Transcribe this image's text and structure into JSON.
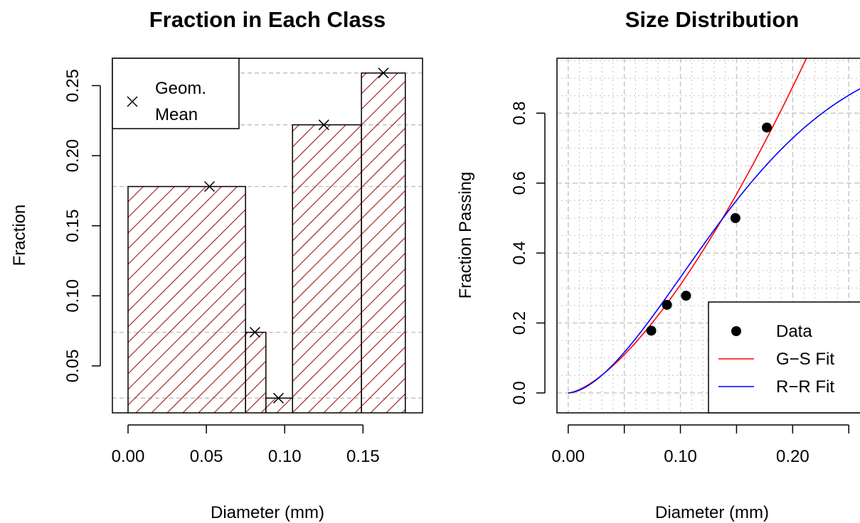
{
  "chart_data": [
    {
      "type": "bar",
      "title": "Fraction in Each Class",
      "xlabel": "Diameter (mm)",
      "ylabel": "Fraction",
      "xlim": [
        -0.01,
        0.188
      ],
      "ylim": [
        0.0165,
        0.2695
      ],
      "x_ticks": [
        "0.00",
        "0.05",
        "0.10",
        "0.15"
      ],
      "y_ticks": [
        "0.05",
        "0.10",
        "0.15",
        "0.20",
        "0.25"
      ],
      "bars": [
        {
          "left": 0.0,
          "right": 0.075,
          "value": 0.178
        },
        {
          "left": 0.075,
          "right": 0.088,
          "value": 0.074
        },
        {
          "left": 0.088,
          "right": 0.105,
          "value": 0.027
        },
        {
          "left": 0.105,
          "right": 0.149,
          "value": 0.222
        },
        {
          "left": 0.149,
          "right": 0.177,
          "value": 0.259
        }
      ],
      "geom_mean": {
        "x": [
          0.052,
          0.081,
          0.096,
          0.125,
          0.163
        ],
        "y": [
          0.178,
          0.074,
          0.027,
          0.222,
          0.259
        ]
      },
      "reference_lines_y": [
        0.027,
        0.074,
        0.178,
        0.222,
        0.259
      ],
      "fill": "hatched",
      "bar_color": "#a52a2a",
      "legend": {
        "position": "top-left",
        "entries": [
          "Geom.",
          "Mean"
        ]
      }
    },
    {
      "type": "scatter",
      "title": "Size Distribution",
      "xlabel": "Diameter (mm)",
      "ylabel": "Fraction Passing",
      "xlim": [
        -0.01,
        0.26
      ],
      "ylim": [
        -0.057,
        0.957
      ],
      "grid": true,
      "x_ticks": [
        "0.00",
        "0.10",
        "0.20"
      ],
      "y_ticks": [
        "0.0",
        "0.2",
        "0.4",
        "0.6",
        "0.8"
      ],
      "points": {
        "name": "Data",
        "x": [
          0.074,
          0.088,
          0.105,
          0.149,
          0.177
        ],
        "y": [
          0.178,
          0.252,
          0.278,
          0.5,
          0.759
        ]
      },
      "series": [
        {
          "name": "G−S Fit",
          "color": "#ff0000",
          "model": "gates-gaudin-schuhmann",
          "params": {
            "k": 0.2186,
            "m": 1.5
          }
        },
        {
          "name": "R−R Fit",
          "color": "#0000ff",
          "model": "rosin-rammler",
          "params": {
            "x0": 0.1711,
            "n": 1.7
          }
        }
      ],
      "legend": {
        "position": "bottom-right",
        "entries": [
          "Data",
          "G−S Fit",
          "R−R Fit"
        ]
      }
    }
  ]
}
